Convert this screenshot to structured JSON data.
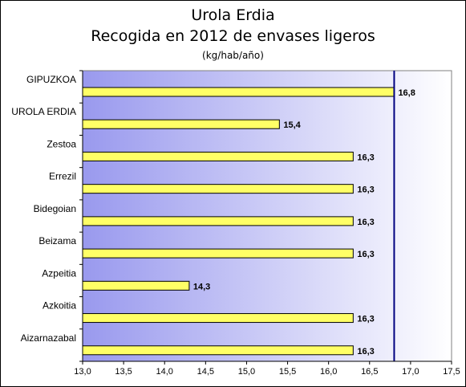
{
  "chart_data": {
    "type": "bar",
    "orientation": "horizontal",
    "title": "Urola Erdia",
    "subtitle": "Recogida en 2012 de envases ligeros",
    "unit_label": "(kg/hab/año)",
    "categories": [
      "GIPUZKOA",
      "UROLA ERDIA",
      "Zestoa",
      "Errezil",
      "Bidegoian",
      "Beizama",
      "Azpeitia",
      "Azkoitia",
      "Aizarnazabal"
    ],
    "values": [
      16.8,
      15.4,
      16.3,
      16.3,
      16.3,
      16.3,
      14.3,
      16.3,
      16.3
    ],
    "value_labels": [
      "16,8",
      "15,4",
      "16,3",
      "16,3",
      "16,3",
      "16,3",
      "14,3",
      "16,3",
      "16,3"
    ],
    "xlim": [
      13.0,
      17.5
    ],
    "xticks": [
      13.0,
      13.5,
      14.0,
      14.5,
      15.0,
      15.5,
      16.0,
      16.5,
      17.0,
      17.5
    ],
    "xtick_labels": [
      "13,0",
      "13,5",
      "14,0",
      "14,5",
      "15,0",
      "15,5",
      "16,0",
      "16,5",
      "17,0",
      "17,5"
    ],
    "reference_line": 16.8,
    "colors": {
      "bar": "#ffff66",
      "reference_line": "#000080",
      "plot_gradient_start": "#9999ee",
      "plot_gradient_end": "#ffffff"
    },
    "legend": "none",
    "grid": false
  }
}
